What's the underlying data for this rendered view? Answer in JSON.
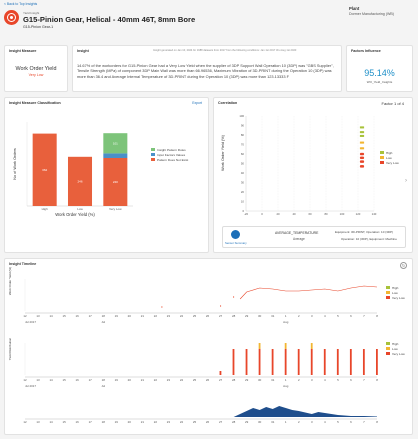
{
  "nav": {
    "back_label": "< Back to Top Insights"
  },
  "header": {
    "kicker": "Yield Insight",
    "title": "G15-Pinion Gear, Helical - 40mm 46T, 8mm Bore",
    "subtitle": "G15-Pinion Gear-1",
    "plant_label": "Plant",
    "plant_value": "Dormer Manufacturing (WB)",
    "brand_color": "#e8462a"
  },
  "insight_measure": {
    "title": "Insight Measure",
    "metric": "Work Order Yield",
    "level": "Very Low"
  },
  "insight": {
    "title": "Insight",
    "top_note": "Insight generated on Jan 10, 2024 for 1688 datasets from 2017 from the following conditions: Jan 1st 2017 thru Aug 1st 2023",
    "body": "14.67% of the workorders for G15-Pinion Gear had a Very Low Yield when the supplier of 3DP Support Wall Operation 10 (3DP) was \"GBS Supplier\", Tensile Strength (MPa) of component 3DP Main Wall was more than 66.96536, Maximum Vibration of 3D-PRINT during the Operation 10 (3DP) was more than 36.4 and Average Internal Temperature of 3D-PRINT during the Operation 10 (3DP) was more than 123.13333 F"
  },
  "factors": {
    "title": "Factors Influence",
    "value": "95.14%",
    "label": "WO_Yield_Insights"
  },
  "classification": {
    "title": "Insight Measure Classification",
    "link": "Export",
    "y_label": "No of Work Orders",
    "x_label": "Work Order Yield (%)",
    "legend": [
      "Insight Pattern Rules",
      "Input Factors Values",
      "Pattern Does Not Exist"
    ]
  },
  "correlation": {
    "title": "Correlation",
    "factor_nav": "Factor 1 of 4",
    "y_label": "Work Order Yield (%)",
    "legend": [
      "High",
      "Low",
      "Very Low"
    ],
    "summary_label": "Sensor Summary",
    "factor_name": "AVERAGE_TEMPERATURE",
    "factor_stat": "Average",
    "equipment_text": "Equipment: 3D-PRINT, Operation: 10 (3DP)",
    "operation_text": "Operation: 10 (3DP), Equipment: Machine"
  },
  "timeline": {
    "title": "Insight Timeline",
    "row1_label": "Work Order Yield (%)",
    "row2_label": "Yield Distribution",
    "legend": [
      "High",
      "Low",
      "Very Low"
    ],
    "month_labels_a": [
      "Jul 2017",
      "Jul"
    ],
    "day_labels": [
      "12",
      "13",
      "14",
      "15",
      "16",
      "17",
      "18",
      "19",
      "20",
      "21",
      "22",
      "23",
      "24",
      "25",
      "26",
      "27",
      "28",
      "29",
      "30",
      "31",
      "1",
      "2",
      "3",
      "4",
      "5",
      "6",
      "7",
      "8"
    ],
    "aug_label": "Aug",
    "aug_label_2": "Aug"
  },
  "chart_data": [
    {
      "type": "bar",
      "title": "Insight Measure Classification",
      "xlabel": "Work Order Yield (%)",
      "ylabel": "No of Work Orders",
      "categories": [
        "High",
        "Low",
        "Very Low"
      ],
      "series": [
        {
          "name": "Pattern Does Not Exist",
          "values": [
            362,
            246,
            240
          ]
        },
        {
          "name": "Input Factors Values",
          "values": [
            0,
            0,
            23
          ]
        },
        {
          "name": "Insight Pattern Rules",
          "values": [
            0,
            0,
            101
          ]
        }
      ],
      "data_labels": [
        "362",
        "246",
        "240",
        "101"
      ],
      "ylim": [
        0,
        420
      ],
      "colors": [
        "#e8603c",
        "#4a90c8",
        "#7dc47a"
      ]
    },
    {
      "type": "scatter",
      "title": "Correlation",
      "ylabel": "Work Order Yield (%)",
      "ylim": [
        0,
        100
      ],
      "yticks": [
        0,
        10,
        20,
        30,
        40,
        50,
        60,
        70,
        80,
        90,
        100
      ],
      "xticks": [
        "-20",
        "0",
        "20",
        "40",
        "60",
        "80",
        "100",
        "120",
        "140"
      ],
      "xlim": [
        -20,
        140
      ],
      "series": [
        {
          "name": "High",
          "color": "#a8c23a",
          "points": [
            [
              124,
              88
            ],
            [
              126,
              88
            ],
            [
              124,
              83
            ],
            [
              126,
              83
            ],
            [
              124,
              79
            ],
            [
              126,
              79
            ]
          ]
        },
        {
          "name": "Low",
          "color": "#f2b632",
          "points": [
            [
              124,
              72
            ],
            [
              126,
              72
            ],
            [
              124,
              66
            ],
            [
              126,
              66
            ]
          ]
        },
        {
          "name": "Very Low",
          "color": "#e8462a",
          "points": [
            [
              124,
              60
            ],
            [
              126,
              60
            ],
            [
              124,
              56
            ],
            [
              126,
              56
            ],
            [
              124,
              52
            ],
            [
              126,
              52
            ],
            [
              124,
              47
            ],
            [
              126,
              47
            ]
          ]
        }
      ]
    }
  ],
  "colors": {
    "very_low": "#e8462a",
    "low": "#f2b632",
    "high": "#a8c23a",
    "accent": "#1d6fb8",
    "area": "#1f4e8c"
  }
}
